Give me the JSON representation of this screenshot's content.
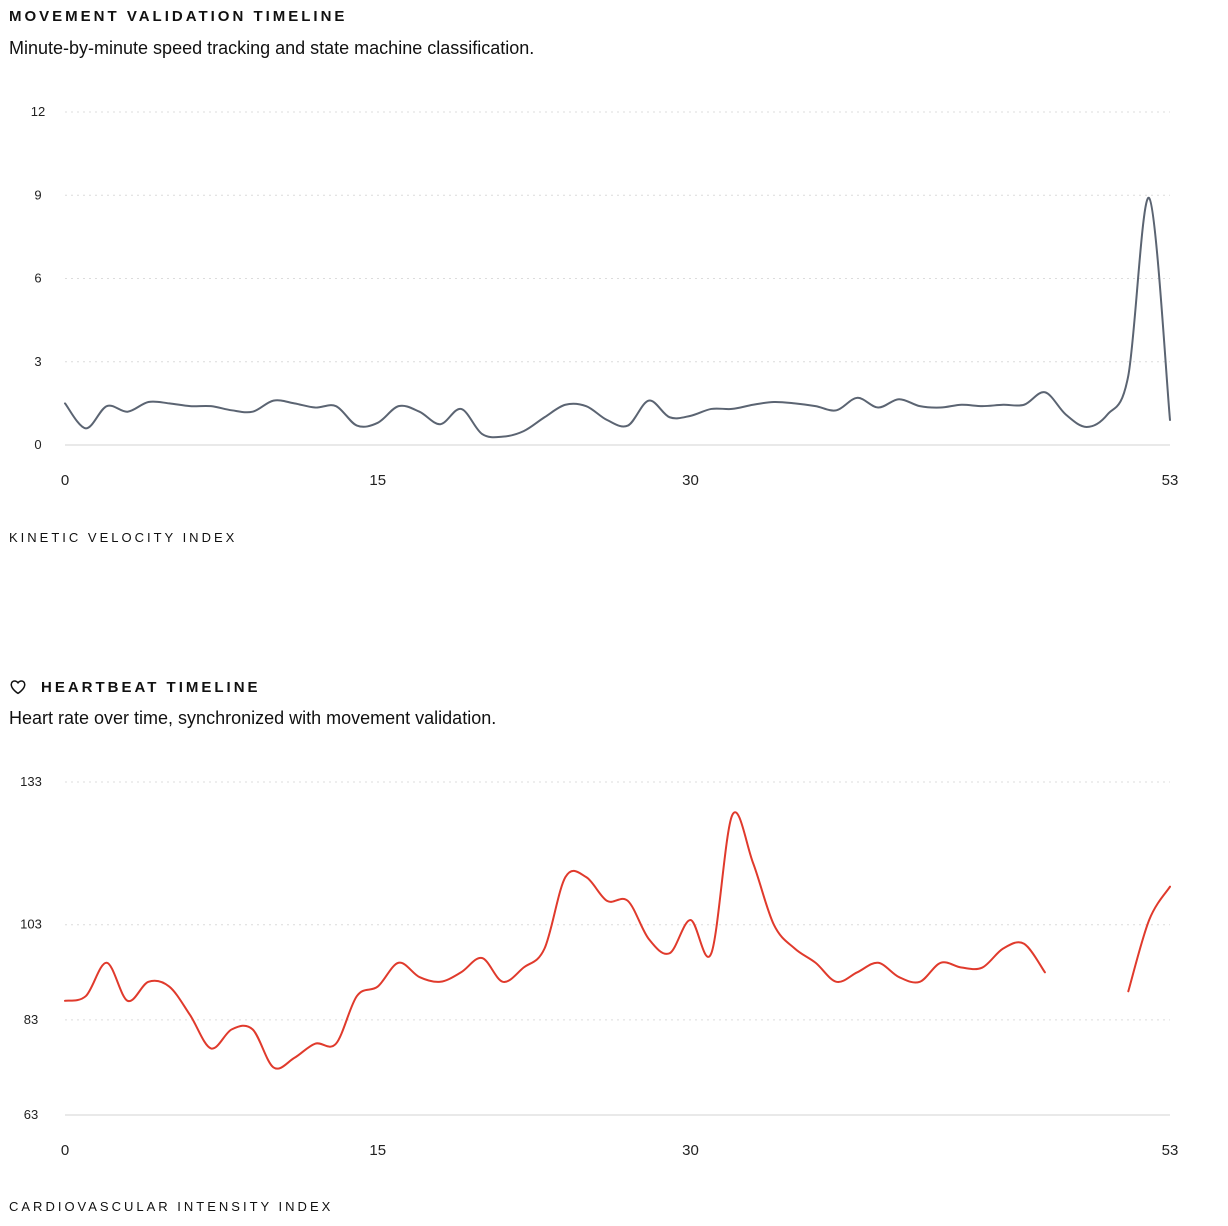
{
  "movement": {
    "title": "MOVEMENT VALIDATION TIMELINE",
    "subtitle": "Minute-by-minute speed tracking and state machine classification.",
    "footer": "KINETIC VELOCITY INDEX"
  },
  "heart": {
    "title": "HEARTBEAT TIMELINE",
    "subtitle": "Heart rate over time, synchronized with movement validation.",
    "footer": "CARDIOVASCULAR INTENSITY INDEX",
    "icon": "heart-outline-icon"
  },
  "chart_data": [
    {
      "type": "line",
      "title": "MOVEMENT VALIDATION TIMELINE",
      "xlabel": "",
      "ylabel": "",
      "xlim": [
        0,
        53
      ],
      "ylim": [
        0,
        12
      ],
      "x_ticks": [
        0,
        15,
        30,
        53
      ],
      "y_ticks": [
        0,
        3,
        6,
        9,
        12
      ],
      "grid": "horizontal dotted",
      "color": "#5b6472",
      "series": [
        {
          "x": [
            0,
            1,
            2,
            3,
            4,
            5,
            6,
            7,
            8,
            9,
            10,
            11,
            12,
            13,
            14,
            15,
            16,
            17,
            18,
            19,
            20,
            21,
            22,
            23,
            24,
            25,
            26,
            27,
            28,
            29,
            30,
            31,
            32,
            33,
            34,
            35,
            36,
            37,
            38,
            39,
            40,
            41,
            42,
            43,
            44,
            45,
            46,
            47,
            48,
            49,
            50,
            51,
            52,
            53
          ],
          "values": [
            1.5,
            0.6,
            1.4,
            1.2,
            1.55,
            1.5,
            1.4,
            1.4,
            1.25,
            1.2,
            1.6,
            1.5,
            1.35,
            1.4,
            0.7,
            0.8,
            1.4,
            1.2,
            0.75,
            1.3,
            0.4,
            0.3,
            0.5,
            1.0,
            1.45,
            1.4,
            0.9,
            0.7,
            1.6,
            1.0,
            1.05,
            1.3,
            1.3,
            1.45,
            1.55,
            1.5,
            1.4,
            1.25,
            1.7,
            1.35,
            1.65,
            1.4,
            1.35,
            1.45,
            1.4,
            1.45,
            1.45,
            1.9,
            1.1,
            0.65,
            1.1,
            2.5,
            8.9,
            0.9
          ]
        }
      ]
    },
    {
      "type": "line",
      "title": "HEARTBEAT TIMELINE",
      "xlabel": "",
      "ylabel": "",
      "xlim": [
        0,
        53
      ],
      "ylim": [
        63,
        133
      ],
      "x_ticks": [
        0,
        15,
        30,
        53
      ],
      "y_ticks": [
        63,
        83,
        103,
        133
      ],
      "grid": "horizontal dotted",
      "color": "#e03a2c",
      "series": [
        {
          "x": [
            0,
            1,
            2,
            3,
            4,
            5,
            6,
            7,
            8,
            9,
            10,
            11,
            12,
            13,
            14,
            15,
            16,
            17,
            18,
            19,
            20,
            21,
            22,
            23,
            24,
            25,
            26,
            27,
            28,
            29,
            30,
            31,
            32,
            33,
            34,
            35,
            36,
            37,
            38,
            39,
            40,
            41,
            42,
            43,
            44,
            45,
            46,
            47,
            48,
            49,
            50,
            51,
            52,
            53
          ],
          "values": [
            87,
            88,
            95,
            87,
            91,
            90,
            84,
            77,
            81,
            81,
            73,
            75,
            78,
            78,
            88,
            90,
            95,
            92,
            91,
            93,
            96,
            91,
            94,
            98,
            113,
            113,
            108,
            108,
            100,
            97,
            104,
            97,
            126,
            116,
            103,
            98,
            95,
            91,
            93,
            95,
            92,
            91,
            95,
            94,
            94,
            98,
            99,
            93,
            null,
            null,
            null,
            89,
            104,
            111
          ]
        }
      ]
    }
  ]
}
